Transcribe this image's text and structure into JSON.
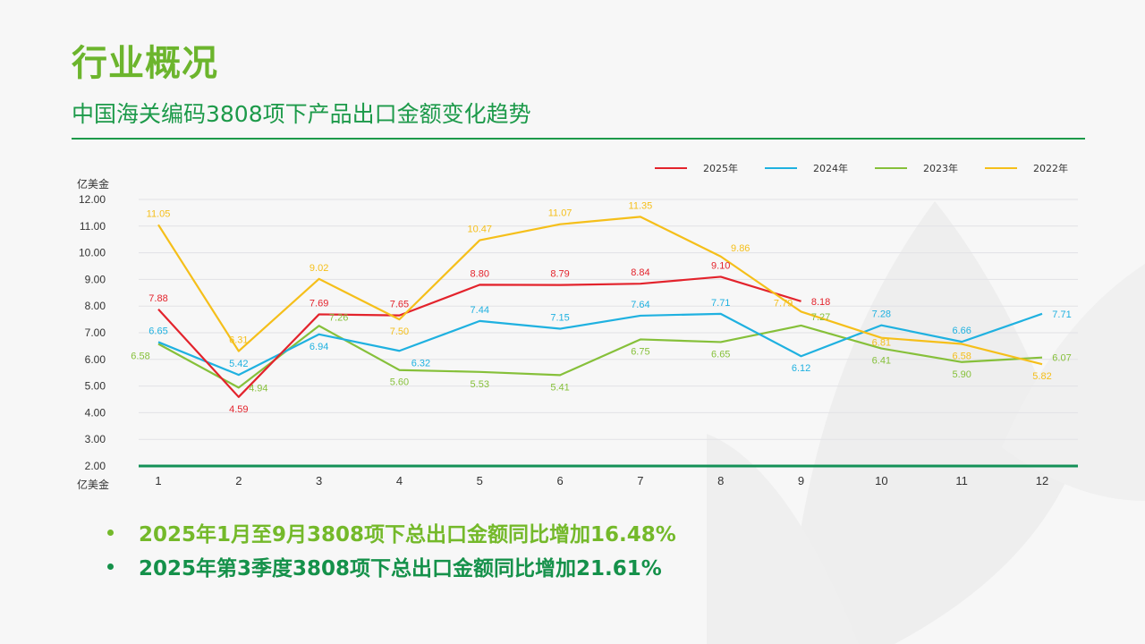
{
  "header": {
    "title": "行业概况",
    "subtitle": "中国海关编码3808项下产品出口金额变化趋势"
  },
  "bullets": [
    "2025年1月至9月3808项下总出口金额同比增加16.48%",
    "2025年第3季度3808项下总出口金额同比增加21.61%"
  ],
  "chart_data": {
    "type": "line",
    "title": "",
    "ylabel": "亿美金",
    "xlabel": "亿美金",
    "ylim": [
      2,
      12
    ],
    "yticks": [
      "2.00",
      "3.00",
      "4.00",
      "5.00",
      "6.00",
      "7.00",
      "8.00",
      "9.00",
      "10.00",
      "11.00",
      "12.00"
    ],
    "categories": [
      "1",
      "2",
      "3",
      "4",
      "5",
      "6",
      "7",
      "8",
      "9",
      "10",
      "11",
      "12"
    ],
    "legend_position": "top-right",
    "grid": true,
    "series": [
      {
        "name": "2025年",
        "color": "#e3232c",
        "values": [
          7.88,
          4.59,
          7.69,
          7.65,
          8.8,
          8.79,
          8.84,
          9.1,
          8.18,
          null,
          null,
          null
        ]
      },
      {
        "name": "2024年",
        "color": "#1fb1e0",
        "values": [
          6.65,
          5.42,
          6.94,
          6.32,
          7.44,
          7.15,
          7.64,
          7.71,
          6.12,
          7.28,
          6.66,
          7.71
        ]
      },
      {
        "name": "2023年",
        "color": "#86c03a",
        "values": [
          6.58,
          4.94,
          7.26,
          5.6,
          5.53,
          5.41,
          6.75,
          6.65,
          7.27,
          6.41,
          5.9,
          6.07
        ]
      },
      {
        "name": "2022年",
        "color": "#f5bf1a",
        "values": [
          11.05,
          6.31,
          9.02,
          7.5,
          10.47,
          11.07,
          11.35,
          9.86,
          7.79,
          6.81,
          6.58,
          5.82
        ]
      }
    ]
  }
}
